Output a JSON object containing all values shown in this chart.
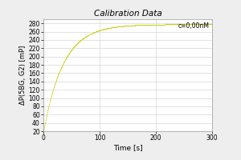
{
  "title": "Calibration Data",
  "xlabel": "Time [s]",
  "ylabel": "ΔP(5BG, G2) [mP]",
  "legend_label": "c=0,00nM",
  "line_color": "#c8cc00",
  "xlim": [
    0,
    300
  ],
  "ylim": [
    20,
    290
  ],
  "xticks": [
    0,
    100,
    200,
    300
  ],
  "yticks": [
    20,
    40,
    60,
    80,
    100,
    120,
    140,
    160,
    180,
    200,
    220,
    240,
    260,
    280
  ],
  "bg_color": "#eeeeee",
  "plot_bg_color": "#ffffff",
  "title_style": "italic",
  "t_max": 300,
  "y_asymptote": 278,
  "y_start": 20,
  "tau": 35
}
